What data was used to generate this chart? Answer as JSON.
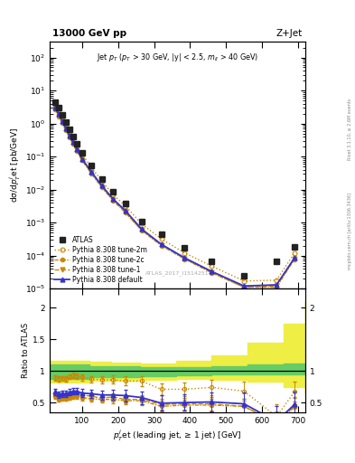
{
  "title_left": "13000 GeV pp",
  "title_right": "Z+Jet",
  "annotation": "Jet $p_{T}$ ($p_{T}$ > 30 GeV, |y| < 2.5, $m_{ll}$ > 40 GeV)",
  "watermark": "ATLAS_2017_I1514251",
  "right_label1": "Rivet 3.1.10, ≥ 2.6M events",
  "right_label2": "mcplots.cern.ch [arXiv:1306.3436]",
  "ylabel_main": "dσ/d$p_{T}^{j}$et [pb/GeV]",
  "ylabel_ratio": "Ratio to ATLAS",
  "xlabel": "$p_{T}^{j}$et (leading jet, ≥ 1 jet) [GeV]",
  "xlim": [
    10,
    720
  ],
  "ylim_main": [
    1e-05,
    300
  ],
  "ylim_ratio": [
    0.35,
    2.3
  ],
  "atlas_x": [
    25,
    35,
    45,
    55,
    65,
    75,
    85,
    100,
    125,
    155,
    185,
    220,
    265,
    320,
    385,
    460,
    550,
    640,
    690
  ],
  "atlas_y": [
    4.5,
    3.0,
    1.8,
    1.1,
    0.65,
    0.4,
    0.25,
    0.13,
    0.055,
    0.021,
    0.0085,
    0.0038,
    0.0011,
    0.00045,
    0.00017,
    6.5e-05,
    2.5e-05,
    6.5e-05,
    0.00018
  ],
  "pythia_x": [
    25,
    35,
    45,
    55,
    65,
    75,
    85,
    100,
    125,
    155,
    185,
    220,
    265,
    320,
    385,
    460,
    550,
    640,
    690
  ],
  "default_y": [
    3.0,
    1.9,
    1.15,
    0.7,
    0.43,
    0.27,
    0.17,
    0.085,
    0.035,
    0.013,
    0.0053,
    0.0023,
    0.00064,
    0.00022,
    8.5e-05,
    3.3e-05,
    1.2e-05,
    1.3e-05,
    8.5e-05
  ],
  "tune1_y": [
    2.8,
    1.75,
    1.08,
    0.65,
    0.4,
    0.25,
    0.16,
    0.08,
    0.033,
    0.012,
    0.005,
    0.0021,
    0.0006,
    0.00021,
    8.1e-05,
    3.1e-05,
    1.1e-05,
    1.2e-05,
    8.1e-05
  ],
  "tune2c_y": [
    2.7,
    1.65,
    1.02,
    0.62,
    0.38,
    0.24,
    0.15,
    0.076,
    0.031,
    0.0115,
    0.0047,
    0.002,
    0.00058,
    0.0002,
    7.8e-05,
    3e-05,
    1.1e-05,
    1.1e-05,
    7.8e-05
  ],
  "tune2m_y": [
    4.0,
    2.6,
    1.58,
    0.96,
    0.59,
    0.37,
    0.23,
    0.117,
    0.048,
    0.018,
    0.0073,
    0.0032,
    0.00092,
    0.00032,
    0.00012,
    4.8e-05,
    1.7e-05,
    1.8e-05,
    0.00012
  ],
  "ratio_default": [
    0.67,
    0.63,
    0.64,
    0.64,
    0.66,
    0.68,
    0.68,
    0.65,
    0.64,
    0.62,
    0.62,
    0.61,
    0.58,
    0.49,
    0.5,
    0.51,
    0.48,
    0.2,
    0.47
  ],
  "ratio_tune1": [
    0.62,
    0.58,
    0.6,
    0.59,
    0.62,
    0.63,
    0.64,
    0.62,
    0.6,
    0.57,
    0.59,
    0.55,
    0.55,
    0.47,
    0.48,
    0.48,
    0.44,
    0.18,
    0.45
  ],
  "ratio_tune2c": [
    0.6,
    0.55,
    0.57,
    0.56,
    0.58,
    0.6,
    0.6,
    0.58,
    0.56,
    0.55,
    0.55,
    0.53,
    0.53,
    0.44,
    0.46,
    0.46,
    0.44,
    0.17,
    0.43
  ],
  "ratio_tune2m": [
    0.89,
    0.87,
    0.88,
    0.87,
    0.91,
    0.93,
    0.92,
    0.9,
    0.87,
    0.86,
    0.86,
    0.84,
    0.84,
    0.71,
    0.71,
    0.74,
    0.68,
    0.28,
    0.67
  ],
  "ratio_err_default": [
    0.05,
    0.05,
    0.05,
    0.05,
    0.05,
    0.05,
    0.05,
    0.06,
    0.06,
    0.07,
    0.08,
    0.09,
    0.1,
    0.12,
    0.13,
    0.15,
    0.18,
    0.25,
    0.2
  ],
  "ratio_err_tune2m": [
    0.05,
    0.05,
    0.05,
    0.05,
    0.05,
    0.05,
    0.05,
    0.06,
    0.06,
    0.07,
    0.08,
    0.09,
    0.1,
    0.12,
    0.13,
    0.15,
    0.18,
    0.25,
    0.2
  ],
  "green_band_lo": [
    0.88,
    0.88,
    0.9,
    0.9,
    0.92,
    0.93,
    0.94,
    0.95,
    0.95,
    0.95
  ],
  "green_band_hi": [
    1.1,
    1.1,
    1.08,
    1.07,
    1.06,
    1.06,
    1.08,
    1.1,
    1.12,
    1.12
  ],
  "green_band_x": [
    10,
    80,
    120,
    180,
    260,
    360,
    460,
    560,
    660,
    720
  ],
  "yellow_band_lo": [
    0.82,
    0.82,
    0.84,
    0.85,
    0.86,
    0.87,
    0.86,
    0.83,
    0.75,
    0.65
  ],
  "yellow_band_hi": [
    1.16,
    1.16,
    1.14,
    1.13,
    1.12,
    1.16,
    1.25,
    1.45,
    1.75,
    2.1
  ],
  "yellow_band_x": [
    10,
    80,
    120,
    180,
    260,
    360,
    460,
    560,
    660,
    720
  ],
  "color_atlas": "#222222",
  "color_default": "#3333cc",
  "color_tune1": "#cc8800",
  "color_tune2c": "#cc8800",
  "color_tune2m": "#cc8800",
  "color_green": "#66cc66",
  "color_yellow": "#eeee44",
  "legend_labels": [
    "ATLAS",
    "Pythia 8.308 default",
    "Pythia 8.308 tune-1",
    "Pythia 8.308 tune-2c",
    "Pythia 8.308 tune-2m"
  ]
}
